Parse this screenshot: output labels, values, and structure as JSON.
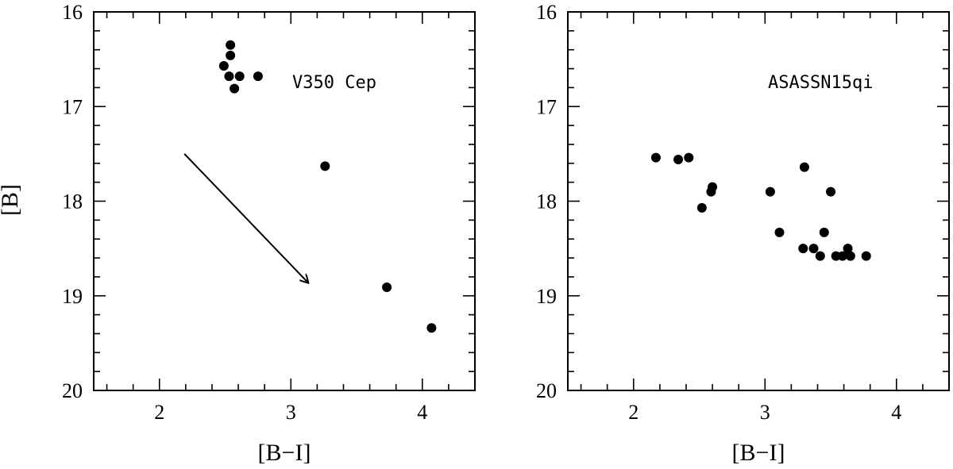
{
  "chart_data": [
    {
      "type": "scatter",
      "title": "",
      "annotation": "V350 Cep",
      "xlabel": "[B−I]",
      "ylabel": "[B]",
      "xlim": [
        1.5,
        4.4
      ],
      "ylim": [
        20,
        16
      ],
      "y_inverted": true,
      "x_ticks": [
        2,
        3,
        4
      ],
      "y_ticks": [
        16,
        17,
        18,
        19,
        20
      ],
      "grid": false,
      "series": [
        {
          "points": [
            {
              "x": 2.54,
              "y": 16.35
            },
            {
              "x": 2.54,
              "y": 16.46
            },
            {
              "x": 2.49,
              "y": 16.57
            },
            {
              "x": 2.53,
              "y": 16.68
            },
            {
              "x": 2.61,
              "y": 16.68
            },
            {
              "x": 2.75,
              "y": 16.68
            },
            {
              "x": 2.57,
              "y": 16.81
            },
            {
              "x": 3.26,
              "y": 17.63
            },
            {
              "x": 3.73,
              "y": 18.91
            },
            {
              "x": 4.07,
              "y": 19.34
            }
          ]
        }
      ],
      "arrow": {
        "from": {
          "x": 2.19,
          "y": 17.5
        },
        "to": {
          "x": 3.13,
          "y": 18.86
        }
      }
    },
    {
      "type": "scatter",
      "title": "",
      "annotation": "ASASSN15qi",
      "xlabel": "[B−I]",
      "ylabel": "",
      "xlim": [
        1.5,
        4.4
      ],
      "ylim": [
        20,
        16
      ],
      "y_inverted": true,
      "x_ticks": [
        2,
        3,
        4
      ],
      "y_ticks": [
        16,
        17,
        18,
        19,
        20
      ],
      "grid": false,
      "series": [
        {
          "points": [
            {
              "x": 2.17,
              "y": 17.54
            },
            {
              "x": 2.34,
              "y": 17.56
            },
            {
              "x": 2.42,
              "y": 17.54
            },
            {
              "x": 2.6,
              "y": 17.85
            },
            {
              "x": 2.59,
              "y": 17.9
            },
            {
              "x": 2.52,
              "y": 18.07
            },
            {
              "x": 3.04,
              "y": 17.9
            },
            {
              "x": 3.3,
              "y": 17.64
            },
            {
              "x": 3.5,
              "y": 17.9
            },
            {
              "x": 3.11,
              "y": 18.33
            },
            {
              "x": 3.45,
              "y": 18.33
            },
            {
              "x": 3.29,
              "y": 18.5
            },
            {
              "x": 3.37,
              "y": 18.5
            },
            {
              "x": 3.63,
              "y": 18.5
            },
            {
              "x": 3.42,
              "y": 18.58
            },
            {
              "x": 3.54,
              "y": 18.58
            },
            {
              "x": 3.59,
              "y": 18.58
            },
            {
              "x": 3.65,
              "y": 18.58
            },
            {
              "x": 3.77,
              "y": 18.58
            }
          ]
        }
      ]
    }
  ]
}
